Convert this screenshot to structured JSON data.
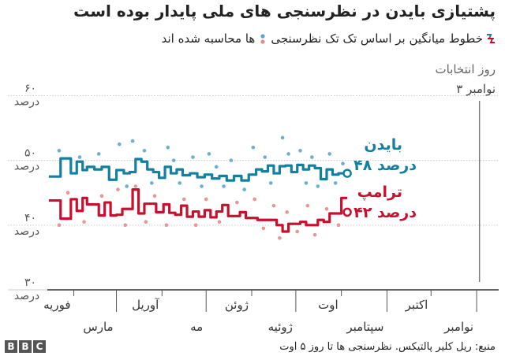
{
  "title": "پشتیازی بایدن در نظرسنجی های ملی پایدار بوده است",
  "subtitle": {
    "part1": "خطوط میانگین بر اساس تک تک نظرسنجی",
    "part2": "ها محاسبه شده اند"
  },
  "election_label": {
    "line1": "روز انتخابات",
    "line2": "۳ نوامبر"
  },
  "source": "منبع: ریل کلیر پالتیکس. نظرسنجی ها تا روز ۵ اوت",
  "logo": [
    "B",
    "B",
    "C"
  ],
  "colors": {
    "biden": "#1380A1",
    "trump": "#C8102E",
    "biden_dots": "#5EA6CC",
    "trump_dots": "#E58A8A",
    "grid": "#cccccc",
    "axis": "#333333"
  },
  "chart_data": {
    "type": "line",
    "ylim": [
      30,
      62
    ],
    "yticks": [
      {
        "value": 60,
        "num": "۶۰",
        "unit": "درصد"
      },
      {
        "value": 50,
        "num": "۵۰",
        "unit": "درصد"
      },
      {
        "value": 40,
        "num": "۴۰",
        "unit": "درصد"
      },
      {
        "value": 30,
        "num": "۳۰",
        "unit": "درصد"
      }
    ],
    "xlim": [
      "2020-01-14",
      "2020-11-16"
    ],
    "election_day": "2020-11-03",
    "xticks": [
      {
        "date": "2020-02-01",
        "label": "فوریه",
        "row": 0
      },
      {
        "date": "2020-03-01",
        "label": "مارس",
        "row": 1
      },
      {
        "date": "2020-04-01",
        "label": "آوریل",
        "row": 0
      },
      {
        "date": "2020-05-01",
        "label": "مه",
        "row": 1
      },
      {
        "date": "2020-06-01",
        "label": "ژوئن",
        "row": 0
      },
      {
        "date": "2020-07-01",
        "label": "ژوئیه",
        "row": 1
      },
      {
        "date": "2020-08-01",
        "label": "اوت",
        "row": 0
      },
      {
        "date": "2020-09-01",
        "label": "سپتامبر",
        "row": 1
      },
      {
        "date": "2020-10-01",
        "label": "اکتبر",
        "row": 0
      },
      {
        "date": "2020-11-01",
        "label": "نوامبر",
        "row": 1
      }
    ],
    "series": [
      {
        "name": "بایدن",
        "value_label": "۴۸ درصد",
        "color": "#1380A1",
        "points": [
          [
            "2020-01-15",
            47.5
          ],
          [
            "2020-01-20",
            47.5
          ],
          [
            "2020-01-23",
            50.3
          ],
          [
            "2020-01-26",
            50.3
          ],
          [
            "2020-01-30",
            48.0
          ],
          [
            "2020-02-03",
            49.8
          ],
          [
            "2020-02-07",
            48.5
          ],
          [
            "2020-02-10",
            49.0
          ],
          [
            "2020-02-15",
            48.6
          ],
          [
            "2020-02-20",
            49.0
          ],
          [
            "2020-02-25",
            47.0
          ],
          [
            "2020-03-01",
            48.5
          ],
          [
            "2020-03-06",
            48.0
          ],
          [
            "2020-03-10",
            48.2
          ],
          [
            "2020-03-14",
            50.2
          ],
          [
            "2020-03-18",
            49.8
          ],
          [
            "2020-03-22",
            48.6
          ],
          [
            "2020-03-26",
            48.2
          ],
          [
            "2020-03-30",
            47.3
          ],
          [
            "2020-04-03",
            49.0
          ],
          [
            "2020-04-07",
            48.0
          ],
          [
            "2020-04-11",
            48.6
          ],
          [
            "2020-04-15",
            47.7
          ],
          [
            "2020-04-20",
            48.0
          ],
          [
            "2020-04-25",
            47.4
          ],
          [
            "2020-04-30",
            47.8
          ],
          [
            "2020-05-05",
            47.2
          ],
          [
            "2020-05-10",
            47.6
          ],
          [
            "2020-05-15",
            46.9
          ],
          [
            "2020-05-20",
            47.6
          ],
          [
            "2020-05-25",
            46.9
          ],
          [
            "2020-05-30",
            47.8
          ],
          [
            "2020-06-04",
            48.6
          ],
          [
            "2020-06-08",
            48.3
          ],
          [
            "2020-06-12",
            49.2
          ],
          [
            "2020-06-16",
            48.0
          ],
          [
            "2020-06-20",
            49.1
          ],
          [
            "2020-06-24",
            49.2
          ],
          [
            "2020-06-28",
            48.2
          ],
          [
            "2020-07-02",
            49.3
          ],
          [
            "2020-07-06",
            48.6
          ],
          [
            "2020-07-10",
            49.2
          ],
          [
            "2020-07-14",
            48.8
          ],
          [
            "2020-07-18",
            47.1
          ],
          [
            "2020-07-22",
            48.6
          ],
          [
            "2020-07-26",
            47.8
          ],
          [
            "2020-07-30",
            48.0
          ]
        ],
        "end": [
          "2020-08-05",
          48.0
        ],
        "dots": [
          [
            "2020-01-22",
            51.5
          ],
          [
            "2020-02-05",
            50.5
          ],
          [
            "2020-02-18",
            51.0
          ],
          [
            "2020-03-03",
            52.5
          ],
          [
            "2020-03-08",
            46.0
          ],
          [
            "2020-03-12",
            53.0
          ],
          [
            "2020-03-20",
            51.5
          ],
          [
            "2020-03-25",
            46.5
          ],
          [
            "2020-04-05",
            52.0
          ],
          [
            "2020-04-09",
            50.0
          ],
          [
            "2020-04-13",
            46.5
          ],
          [
            "2020-04-22",
            50.5
          ],
          [
            "2020-04-28",
            46.0
          ],
          [
            "2020-05-03",
            51.0
          ],
          [
            "2020-05-08",
            49.0
          ],
          [
            "2020-05-13",
            46.0
          ],
          [
            "2020-05-18",
            50.0
          ],
          [
            "2020-05-27",
            45.5
          ],
          [
            "2020-06-02",
            52.0
          ],
          [
            "2020-06-10",
            50.5
          ],
          [
            "2020-06-14",
            46.5
          ],
          [
            "2020-06-22",
            53.5
          ],
          [
            "2020-06-26",
            51.0
          ],
          [
            "2020-07-04",
            51.5
          ],
          [
            "2020-07-08",
            46.5
          ],
          [
            "2020-07-12",
            50.5
          ],
          [
            "2020-07-16",
            46.0
          ],
          [
            "2020-07-24",
            51.0
          ],
          [
            "2020-07-28",
            46.5
          ],
          [
            "2020-08-02",
            49.5
          ]
        ]
      },
      {
        "name": "ترامپ",
        "value_label": "۴۲ درصد",
        "color": "#C8102E",
        "points": [
          [
            "2020-01-15",
            43.8
          ],
          [
            "2020-01-20",
            43.8
          ],
          [
            "2020-01-23",
            41.0
          ],
          [
            "2020-01-26",
            41.0
          ],
          [
            "2020-01-30",
            44.0
          ],
          [
            "2020-02-03",
            42.2
          ],
          [
            "2020-02-07",
            44.2
          ],
          [
            "2020-02-10",
            43.2
          ],
          [
            "2020-02-14",
            43.2
          ],
          [
            "2020-02-18",
            41.5
          ],
          [
            "2020-02-22",
            43.5
          ],
          [
            "2020-02-26",
            41.5
          ],
          [
            "2020-03-01",
            41.6
          ],
          [
            "2020-03-05",
            42.5
          ],
          [
            "2020-03-09",
            42.5
          ],
          [
            "2020-03-12",
            45.5
          ],
          [
            "2020-03-16",
            41.8
          ],
          [
            "2020-03-20",
            43.3
          ],
          [
            "2020-03-24",
            43.3
          ],
          [
            "2020-03-28",
            42.0
          ],
          [
            "2020-04-02",
            43.2
          ],
          [
            "2020-04-06",
            41.9
          ],
          [
            "2020-04-10",
            41.6
          ],
          [
            "2020-04-14",
            43.0
          ],
          [
            "2020-04-18",
            41.3
          ],
          [
            "2020-04-22",
            42.1
          ],
          [
            "2020-04-26",
            41.3
          ],
          [
            "2020-04-30",
            42.3
          ],
          [
            "2020-05-04",
            41.2
          ],
          [
            "2020-05-08",
            42.1
          ],
          [
            "2020-05-12",
            43.1
          ],
          [
            "2020-05-16",
            41.4
          ],
          [
            "2020-05-20",
            41.4
          ],
          [
            "2020-05-24",
            42.0
          ],
          [
            "2020-05-28",
            41.1
          ],
          [
            "2020-06-01",
            41.1
          ],
          [
            "2020-06-05",
            40.8
          ],
          [
            "2020-06-10",
            40.8
          ],
          [
            "2020-06-14",
            40.8
          ],
          [
            "2020-06-18",
            40.0
          ],
          [
            "2020-06-22",
            39.0
          ],
          [
            "2020-06-26",
            40.2
          ],
          [
            "2020-06-30",
            40.2
          ],
          [
            "2020-07-04",
            40.5
          ],
          [
            "2020-07-08",
            40.0
          ],
          [
            "2020-07-12",
            40.0
          ],
          [
            "2020-07-16",
            40.8
          ],
          [
            "2020-07-20",
            40.5
          ],
          [
            "2020-07-24",
            41.8
          ],
          [
            "2020-07-28",
            41.8
          ],
          [
            "2020-08-01",
            44.2
          ]
        ],
        "end": [
          "2020-08-05",
          42.0
        ],
        "dots": [
          [
            "2020-01-22",
            40.0
          ],
          [
            "2020-01-28",
            45.0
          ],
          [
            "2020-02-08",
            40.5
          ],
          [
            "2020-02-20",
            44.5
          ],
          [
            "2020-03-02",
            45.5
          ],
          [
            "2020-03-07",
            40.0
          ],
          [
            "2020-03-14",
            46.0
          ],
          [
            "2020-03-21",
            40.5
          ],
          [
            "2020-03-27",
            44.5
          ],
          [
            "2020-04-04",
            40.0
          ],
          [
            "2020-04-16",
            44.0
          ],
          [
            "2020-04-24",
            40.0
          ],
          [
            "2020-05-01",
            44.0
          ],
          [
            "2020-05-10",
            40.5
          ],
          [
            "2020-05-22",
            43.5
          ],
          [
            "2020-06-03",
            44.0
          ],
          [
            "2020-06-09",
            39.5
          ],
          [
            "2020-06-16",
            43.0
          ],
          [
            "2020-06-20",
            38.0
          ],
          [
            "2020-06-25",
            42.0
          ],
          [
            "2020-07-02",
            39.0
          ],
          [
            "2020-07-09",
            43.0
          ],
          [
            "2020-07-14",
            38.5
          ],
          [
            "2020-07-22",
            42.5
          ],
          [
            "2020-07-30",
            40.0
          ]
        ]
      }
    ]
  }
}
